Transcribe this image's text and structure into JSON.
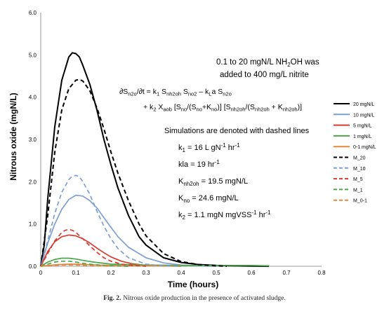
{
  "chart_data": {
    "type": "line",
    "xlabel": "Time (hours)",
    "ylabel": "Nitrous oxide (mgN/L)",
    "xlim": [
      0,
      0.8
    ],
    "ylim": [
      0,
      6.0
    ],
    "x_ticks": [
      "0",
      "0.1",
      "0.2",
      "0.3",
      "0.4",
      "0.5",
      "0.6",
      "0.7",
      "0.8"
    ],
    "y_ticks": [
      "0.0",
      "1.0",
      "2.0",
      "3.0",
      "4.0",
      "5.0",
      "6.0"
    ],
    "grid": false,
    "legend_position": "right",
    "series": [
      {
        "name": "20 mgN/L",
        "color": "#000000",
        "dash": false,
        "x": [
          0,
          0.01,
          0.02,
          0.04,
          0.06,
          0.08,
          0.09,
          0.1,
          0.11,
          0.12,
          0.14,
          0.16,
          0.18,
          0.2,
          0.22,
          0.25,
          0.28,
          0.3,
          0.35,
          0.4,
          0.45,
          0.5,
          0.55,
          0.6,
          0.65
        ],
        "y": [
          0,
          0.5,
          1.6,
          3.3,
          4.4,
          4.95,
          5.05,
          5.03,
          4.95,
          4.75,
          4.3,
          3.7,
          3.0,
          2.4,
          1.85,
          1.2,
          0.7,
          0.5,
          0.2,
          0.09,
          0.04,
          0.02,
          0.01,
          0.005,
          0
        ]
      },
      {
        "name": "10 mgN/L",
        "color": "#7d9fcf",
        "dash": false,
        "x": [
          0,
          0.02,
          0.04,
          0.06,
          0.08,
          0.1,
          0.12,
          0.14,
          0.16,
          0.18,
          0.2,
          0.22,
          0.25,
          0.3,
          0.35,
          0.4,
          0.45,
          0.5
        ],
        "y": [
          0,
          0.55,
          1.0,
          1.35,
          1.58,
          1.68,
          1.66,
          1.55,
          1.38,
          1.15,
          0.92,
          0.7,
          0.45,
          0.2,
          0.08,
          0.03,
          0.01,
          0
        ]
      },
      {
        "name": "5 mgN/L",
        "color": "#d63b2f",
        "dash": false,
        "x": [
          0,
          0.02,
          0.04,
          0.06,
          0.08,
          0.1,
          0.12,
          0.14,
          0.16,
          0.18,
          0.2,
          0.23,
          0.26,
          0.3,
          0.35,
          0.4
        ],
        "y": [
          0,
          0.35,
          0.58,
          0.7,
          0.74,
          0.72,
          0.65,
          0.55,
          0.43,
          0.32,
          0.22,
          0.12,
          0.06,
          0.02,
          0.01,
          0
        ]
      },
      {
        "name": "1 mgN/L",
        "color": "#4aa64a",
        "dash": false,
        "x": [
          0,
          0.02,
          0.04,
          0.06,
          0.08,
          0.1,
          0.12,
          0.15,
          0.2,
          0.3,
          0.4,
          0.5,
          0.6,
          0.65
        ],
        "y": [
          0,
          0.1,
          0.16,
          0.19,
          0.19,
          0.17,
          0.14,
          0.1,
          0.05,
          0.03,
          0.02,
          0.02,
          0.02,
          0.01
        ]
      },
      {
        "name": "0-1 mgN/L",
        "color": "#e3883a",
        "dash": false,
        "x": [
          0,
          0.02,
          0.05,
          0.08,
          0.1,
          0.13,
          0.16,
          0.2,
          0.3,
          0.4
        ],
        "y": [
          0,
          0.02,
          0.04,
          0.05,
          0.05,
          0.04,
          0.03,
          0.02,
          0.01,
          0
        ]
      },
      {
        "name": "M_20",
        "color": "#000000",
        "dash": true,
        "x": [
          0,
          0.02,
          0.04,
          0.06,
          0.08,
          0.1,
          0.11,
          0.12,
          0.14,
          0.16,
          0.18,
          0.2,
          0.22,
          0.25,
          0.28,
          0.3,
          0.35,
          0.4,
          0.45,
          0.5,
          0.53
        ],
        "y": [
          0,
          1.2,
          2.7,
          3.7,
          4.2,
          4.4,
          4.42,
          4.38,
          4.15,
          3.75,
          3.25,
          2.7,
          2.2,
          1.55,
          1.0,
          0.72,
          0.3,
          0.11,
          0.04,
          0.01,
          0
        ]
      },
      {
        "name": "M_10",
        "color": "#7d9fcf",
        "dash": true,
        "x": [
          0,
          0.02,
          0.04,
          0.06,
          0.08,
          0.09,
          0.1,
          0.11,
          0.12,
          0.14,
          0.16,
          0.18,
          0.2,
          0.22,
          0.25,
          0.3,
          0.35,
          0.4
        ],
        "y": [
          0,
          0.6,
          1.25,
          1.75,
          2.05,
          2.13,
          2.15,
          2.12,
          2.0,
          1.7,
          1.3,
          0.95,
          0.65,
          0.42,
          0.2,
          0.05,
          0.01,
          0
        ]
      },
      {
        "name": "M_5",
        "color": "#d63b2f",
        "dash": true,
        "x": [
          0,
          0.02,
          0.04,
          0.06,
          0.07,
          0.08,
          0.09,
          0.1,
          0.12,
          0.14,
          0.16,
          0.18,
          0.2,
          0.23,
          0.26,
          0.3
        ],
        "y": [
          0,
          0.3,
          0.6,
          0.8,
          0.85,
          0.87,
          0.85,
          0.8,
          0.65,
          0.48,
          0.33,
          0.2,
          0.12,
          0.05,
          0.02,
          0
        ]
      },
      {
        "name": "M_1",
        "color": "#4aa64a",
        "dash": true,
        "x": [
          0,
          0.02,
          0.04,
          0.06,
          0.08,
          0.1,
          0.12,
          0.15,
          0.2,
          0.25
        ],
        "y": [
          0,
          0.05,
          0.1,
          0.12,
          0.12,
          0.1,
          0.07,
          0.04,
          0.01,
          0
        ]
      },
      {
        "name": "M_0-1",
        "color": "#e3883a",
        "dash": true,
        "x": [
          0,
          0.03,
          0.06,
          0.08,
          0.1,
          0.13,
          0.16,
          0.2
        ],
        "y": [
          0,
          0.02,
          0.03,
          0.03,
          0.03,
          0.02,
          0.01,
          0
        ]
      }
    ],
    "annotations": {
      "line1": "0.1 to 20 mgN/L NH",
      "line1_sub": "2",
      "line1_end": "OH was",
      "line2": "added to 400 mg/L nitrite",
      "equation_a": "∂S",
      "equation_a_sub1": "n2o",
      "equation_a_mid": "/∂t = k",
      "equation_a_sub2": "1",
      "equation_a_s1": " S",
      "equation_a_sub3": "nh2oh",
      "equation_a_s2": " S",
      "equation_a_sub4": "no2",
      "equation_a_s3": " – k",
      "equation_a_sub5": "L",
      "equation_a_s4": "a S",
      "equation_a_sub6": "n2o",
      "equation_b": "+ k",
      "equation_b_sub1": "2",
      "equation_b_s1": " X",
      "equation_b_sub2": "aob",
      "equation_b_s2": " [S",
      "equation_b_sub3": "no",
      "equation_b_s3": "/(S",
      "equation_b_sub4": "no",
      "equation_b_s4": "+K",
      "equation_b_sub5": "no",
      "equation_b_s5": ")] [S",
      "equation_b_sub6": "nh2oh",
      "equation_b_s6": "/(S",
      "equation_b_sub7": "nh2oh",
      "equation_b_s7": " + K",
      "equation_b_sub8": "nh2oh",
      "equation_b_s8": ")]",
      "sim_note": "Simulations are denoted with dashed lines",
      "p1_a": "k",
      "p1_sub": "1",
      "p1_b": " = 16 L gN",
      "p1_sup1": "-1",
      "p1_c": " hr",
      "p1_sup2": "-1",
      "p2": "kla = 19 hr",
      "p2_sup": "-1",
      "p3_a": "K",
      "p3_sub": "nh2oh",
      "p3_b": " = 19.5 mgN/L",
      "p4_a": "K",
      "p4_sub": "no",
      "p4_b": " = 24.6 mgN/L",
      "p5_a": "k",
      "p5_sub": "2",
      "p5_b": " = 1.1 mgN mgVSS",
      "p5_sup1": "-1",
      "p5_c": " hr",
      "p5_sup2": "-1"
    }
  },
  "caption": {
    "label": "Fig. 2.",
    "text": "Nitrous oxide production in the presence of activated sludge."
  }
}
